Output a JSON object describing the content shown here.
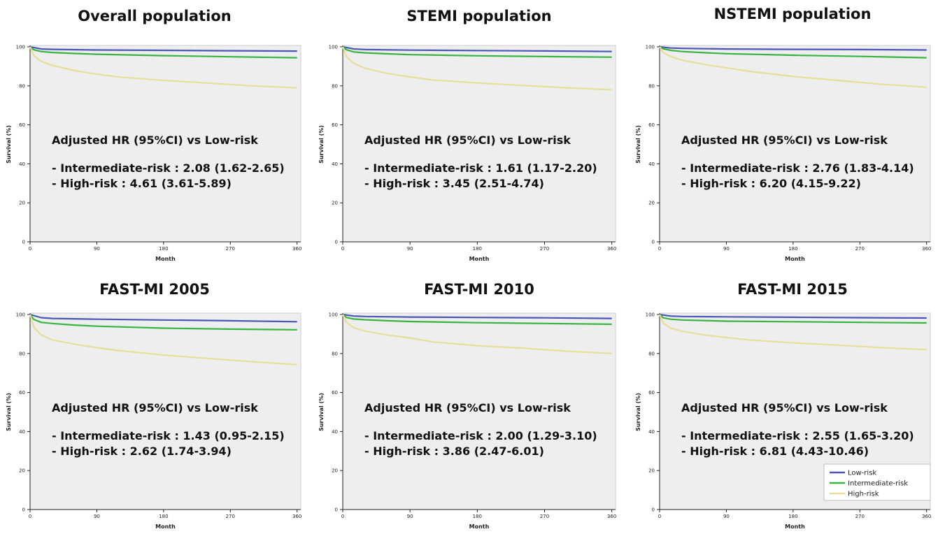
{
  "colors": {
    "panel_bg": "#eeeeee",
    "low": "#4a56b6",
    "intermediate": "#39b442",
    "high": "#e6df9a"
  },
  "legend": [
    {
      "key": "low",
      "label": "Low-risk"
    },
    {
      "key": "intermediate",
      "label": "Intermediate-risk"
    },
    {
      "key": "high",
      "label": "High-risk"
    }
  ],
  "chart_data": [
    {
      "type": "line",
      "title": "Overall population",
      "xlabel": "Month",
      "ylabel": "Survival (%)",
      "xlim": [
        0,
        365
      ],
      "ylim": [
        0,
        100
      ],
      "xticks": [
        0,
        90,
        180,
        270,
        360
      ],
      "yticks": [
        0,
        20,
        40,
        60,
        80,
        100
      ],
      "annotation": {
        "heading": "Adjusted HR (95%CI) vs Low-risk",
        "lines": [
          "- Intermediate-risk : 2.08 (1.62-2.65)",
          "- High-risk : 4.61 (3.61-5.89)"
        ]
      },
      "series": [
        {
          "key": "low",
          "x": [
            0,
            15,
            30,
            90,
            180,
            270,
            360
          ],
          "y": [
            100,
            98.9,
            98.7,
            98.4,
            98.2,
            98.0,
            97.8
          ]
        },
        {
          "key": "intermediate",
          "x": [
            0,
            5,
            15,
            30,
            60,
            90,
            180,
            270,
            360
          ],
          "y": [
            100,
            98.5,
            97.6,
            97.1,
            96.6,
            96.2,
            95.5,
            94.9,
            94.4
          ]
        },
        {
          "key": "high",
          "x": [
            0,
            5,
            15,
            30,
            60,
            90,
            120,
            180,
            240,
            300,
            360
          ],
          "y": [
            100,
            95.5,
            92.5,
            90.5,
            87.8,
            86.0,
            84.5,
            82.8,
            81.4,
            80.0,
            79.0
          ]
        }
      ]
    },
    {
      "type": "line",
      "title": "STEMI population",
      "xlabel": "Month",
      "ylabel": "Survival (%)",
      "xlim": [
        0,
        365
      ],
      "ylim": [
        0,
        100
      ],
      "xticks": [
        0,
        90,
        180,
        270,
        360
      ],
      "yticks": [
        0,
        20,
        40,
        60,
        80,
        100
      ],
      "annotation": {
        "heading": "Adjusted HR (95%CI) vs Low-risk",
        "lines": [
          "- Intermediate-risk : 1.61 (1.17-2.20)",
          "- High-risk : 3.45 (2.51-4.74)"
        ]
      },
      "series": [
        {
          "key": "low",
          "x": [
            0,
            15,
            30,
            90,
            180,
            270,
            360
          ],
          "y": [
            100,
            98.9,
            98.6,
            98.3,
            98.1,
            97.9,
            97.6
          ]
        },
        {
          "key": "intermediate",
          "x": [
            0,
            5,
            15,
            30,
            60,
            90,
            180,
            270,
            360
          ],
          "y": [
            100,
            98.5,
            97.4,
            96.9,
            96.4,
            96.0,
            95.4,
            95.0,
            94.7
          ]
        },
        {
          "key": "high",
          "x": [
            0,
            5,
            15,
            30,
            60,
            90,
            120,
            180,
            240,
            300,
            360
          ],
          "y": [
            100,
            95.0,
            91.5,
            89.0,
            86.3,
            84.6,
            83.0,
            81.5,
            80.2,
            79.0,
            78.0
          ]
        }
      ]
    },
    {
      "type": "line",
      "title": "NSTEMI population",
      "xlabel": "Month",
      "ylabel": "Survival (%)",
      "xlim": [
        0,
        365
      ],
      "ylim": [
        0,
        100
      ],
      "xticks": [
        0,
        90,
        180,
        270,
        360
      ],
      "yticks": [
        0,
        20,
        40,
        60,
        80,
        100
      ],
      "annotation": {
        "heading": "Adjusted HR (95%CI) vs Low-risk",
        "lines": [
          "- Intermediate-risk : 2.76 (1.83-4.14)",
          "- High-risk : 6.20 (4.15-9.22)"
        ]
      },
      "series": [
        {
          "key": "low",
          "x": [
            0,
            15,
            30,
            90,
            180,
            270,
            360
          ],
          "y": [
            100,
            99.4,
            99.2,
            98.9,
            98.7,
            98.6,
            98.4
          ]
        },
        {
          "key": "intermediate",
          "x": [
            0,
            5,
            15,
            30,
            60,
            90,
            180,
            270,
            360
          ],
          "y": [
            100,
            99.0,
            98.2,
            97.6,
            97.0,
            96.5,
            95.7,
            95.1,
            94.4
          ]
        },
        {
          "key": "high",
          "x": [
            0,
            5,
            15,
            30,
            60,
            90,
            120,
            180,
            240,
            300,
            360
          ],
          "y": [
            100,
            97.0,
            95.0,
            93.2,
            91.0,
            89.2,
            87.5,
            84.8,
            82.8,
            80.8,
            79.3
          ]
        }
      ]
    },
    {
      "type": "line",
      "title": "FAST-MI 2005",
      "xlabel": "Month",
      "ylabel": "Survival (%)",
      "xlim": [
        0,
        365
      ],
      "ylim": [
        0,
        100
      ],
      "xticks": [
        0,
        90,
        180,
        270,
        360
      ],
      "yticks": [
        0,
        20,
        40,
        60,
        80,
        100
      ],
      "annotation": {
        "heading": "Adjusted HR (95%CI) vs Low-risk",
        "lines": [
          "- Intermediate-risk : 1.43 (0.95-2.15)",
          "- High-risk : 2.62 (1.74-3.94)"
        ]
      },
      "series": [
        {
          "key": "low",
          "x": [
            0,
            15,
            30,
            90,
            180,
            270,
            360
          ],
          "y": [
            100,
            98.4,
            98.0,
            97.6,
            97.2,
            96.8,
            96.3
          ]
        },
        {
          "key": "intermediate",
          "x": [
            0,
            5,
            15,
            30,
            60,
            90,
            180,
            270,
            360
          ],
          "y": [
            100,
            97.5,
            96.0,
            95.4,
            94.6,
            94.0,
            93.0,
            92.5,
            92.2
          ]
        },
        {
          "key": "high",
          "x": [
            0,
            5,
            15,
            30,
            60,
            90,
            120,
            180,
            240,
            300,
            360
          ],
          "y": [
            100,
            93.5,
            89.5,
            87.0,
            84.8,
            83.0,
            81.5,
            79.2,
            77.5,
            75.8,
            74.3
          ]
        }
      ]
    },
    {
      "type": "line",
      "title": "FAST-MI 2010",
      "xlabel": "Month",
      "ylabel": "Survival (%)",
      "xlim": [
        0,
        365
      ],
      "ylim": [
        0,
        100
      ],
      "xticks": [
        0,
        90,
        180,
        270,
        360
      ],
      "yticks": [
        0,
        20,
        40,
        60,
        80,
        100
      ],
      "annotation": {
        "heading": "Adjusted HR (95%CI) vs Low-risk",
        "lines": [
          "- Intermediate-risk : 2.00 (1.29-3.10)",
          "- High-risk : 3.86 (2.47-6.01)"
        ]
      },
      "series": [
        {
          "key": "low",
          "x": [
            0,
            15,
            30,
            90,
            180,
            270,
            360
          ],
          "y": [
            100,
            99.2,
            99.0,
            98.7,
            98.5,
            98.3,
            98.0
          ]
        },
        {
          "key": "intermediate",
          "x": [
            0,
            5,
            15,
            30,
            60,
            90,
            180,
            270,
            360
          ],
          "y": [
            100,
            98.5,
            97.7,
            97.3,
            96.8,
            96.4,
            95.8,
            95.4,
            95.0
          ]
        },
        {
          "key": "high",
          "x": [
            0,
            5,
            15,
            30,
            60,
            90,
            120,
            180,
            240,
            300,
            360
          ],
          "y": [
            100,
            96.0,
            93.2,
            91.5,
            89.5,
            88.0,
            86.0,
            84.0,
            82.8,
            81.2,
            80.0
          ]
        }
      ]
    },
    {
      "type": "line",
      "title": "FAST-MI 2015",
      "xlabel": "Month",
      "ylabel": "Survival (%)",
      "xlim": [
        0,
        365
      ],
      "ylim": [
        0,
        100
      ],
      "xticks": [
        0,
        90,
        180,
        270,
        360
      ],
      "yticks": [
        0,
        20,
        40,
        60,
        80,
        100
      ],
      "annotation": {
        "heading": "Adjusted HR (95%CI) vs Low-risk",
        "lines": [
          "- Intermediate-risk : 2.55 (1.65-3.20)",
          "- High-risk : 6.81 (4.43-10.46)"
        ]
      },
      "legend": "bottom-right",
      "series": [
        {
          "key": "low",
          "x": [
            0,
            15,
            30,
            90,
            180,
            270,
            360
          ],
          "y": [
            100,
            99.2,
            99.0,
            98.8,
            98.6,
            98.4,
            98.2
          ]
        },
        {
          "key": "intermediate",
          "x": [
            0,
            5,
            15,
            30,
            60,
            90,
            180,
            270,
            360
          ],
          "y": [
            100,
            98.3,
            97.6,
            97.2,
            96.9,
            96.6,
            96.3,
            96.0,
            95.7
          ]
        },
        {
          "key": "high",
          "x": [
            0,
            5,
            15,
            30,
            60,
            90,
            120,
            180,
            240,
            300,
            360
          ],
          "y": [
            100,
            95.5,
            93.0,
            91.5,
            89.5,
            88.2,
            87.0,
            85.5,
            84.3,
            83.0,
            82.0
          ]
        }
      ]
    }
  ]
}
